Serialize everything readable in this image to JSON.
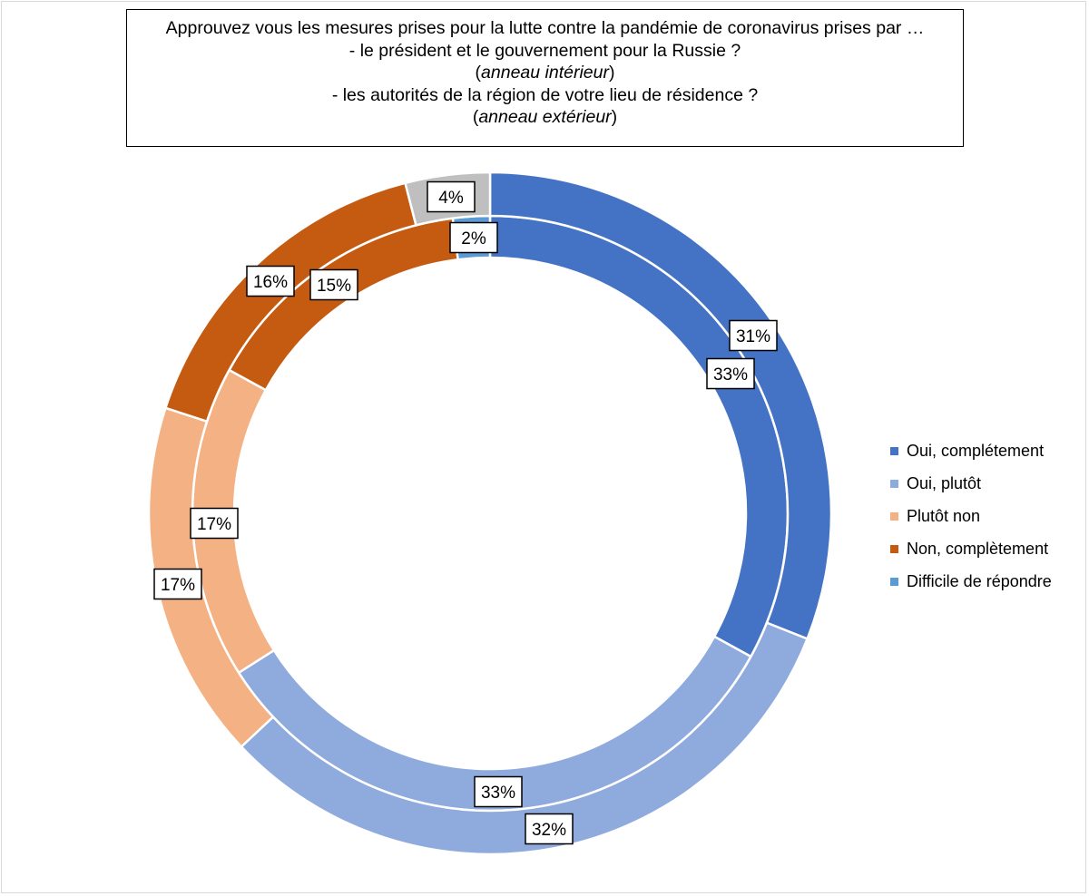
{
  "title": {
    "line1": "Approuvez vous les mesures prises pour la lutte contre la pandémie de coronavirus prises par …",
    "line2": "- le président et le gouvernement pour la Russie ?",
    "note_inner": "anneau intérieur",
    "line3": "- les autorités de la région de votre lieu de résidence ?",
    "note_outer": "anneau extérieur"
  },
  "legend": [
    {
      "label": "Oui, complétement",
      "color": "#4472c4"
    },
    {
      "label": "Oui, plutôt",
      "color": "#8faadc"
    },
    {
      "label": "Plutôt non",
      "color": "#f4b183"
    },
    {
      "label": "Non, complètement",
      "color": "#c55a11"
    },
    {
      "label": "Difficile de répondre",
      "color": "#5b9bd5"
    }
  ],
  "chart_data": {
    "type": "doughnut",
    "categories": [
      "Oui, complétement",
      "Oui, plutôt",
      "Plutôt non",
      "Non, complètement",
      "Difficile de répondre"
    ],
    "series": [
      {
        "ring": "inner",
        "values": [
          33,
          33,
          17,
          15,
          2
        ],
        "labels": [
          "33%",
          "33%",
          "17%",
          "15%",
          "2%"
        ],
        "colors": [
          "#4472c4",
          "#8faadc",
          "#f4b183",
          "#c55a11",
          "#5b9bd5"
        ]
      },
      {
        "ring": "outer",
        "values": [
          31,
          32,
          17,
          16,
          4
        ],
        "labels": [
          "31%",
          "32%",
          "17%",
          "16%",
          "4%"
        ],
        "colors": [
          "#4472c4",
          "#8faadc",
          "#f4b183",
          "#c55a11",
          "#bfbfbf"
        ]
      }
    ],
    "legend_position": "right"
  }
}
